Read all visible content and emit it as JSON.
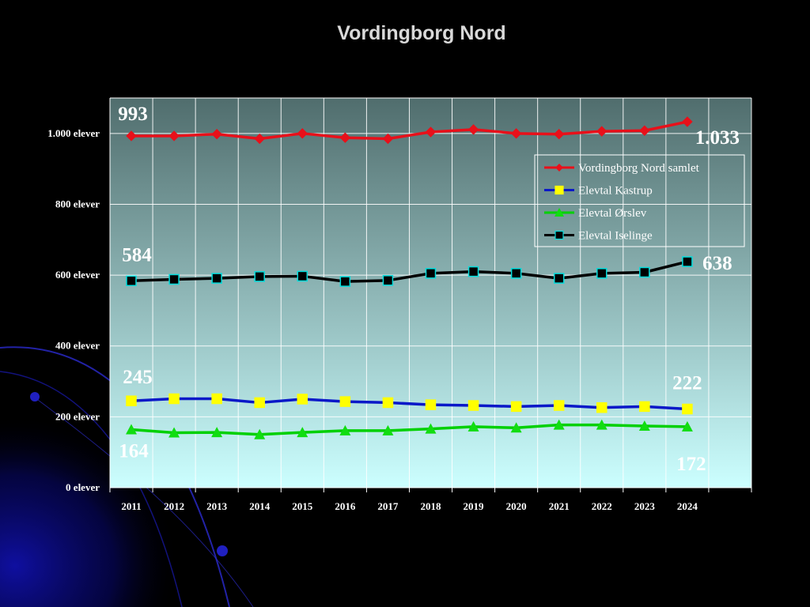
{
  "slide": {
    "title": "Vordingborg Nord"
  },
  "chart_data": {
    "type": "line",
    "title": "",
    "xlabel": "",
    "ylabel": "",
    "categories": [
      "2011",
      "2012",
      "2013",
      "2014",
      "2015",
      "2016",
      "2017",
      "2018",
      "2019",
      "2020",
      "2021",
      "2022",
      "2023",
      "2024"
    ],
    "ylim": [
      0,
      1100
    ],
    "yticks": [
      0,
      200,
      400,
      600,
      800,
      1000
    ],
    "ytick_labels": [
      "0 elever",
      "200 elever",
      "400 elever",
      "600 elever",
      "800 elever",
      "1.000 elever"
    ],
    "grid": true,
    "legend_position": "top-right",
    "series": [
      {
        "name": "Vordingborg Nord samlet",
        "color": "#e8101a",
        "marker": "diamond",
        "marker_color": "#e8101a",
        "values": [
          993,
          993,
          998,
          985,
          1000,
          988,
          985,
          1004,
          1011,
          1000,
          998,
          1006,
          1008,
          1033
        ]
      },
      {
        "name": "Elevtal Kastrup",
        "color": "#0a18c8",
        "marker": "square",
        "marker_color": "#ffff00",
        "values": [
          245,
          251,
          251,
          240,
          250,
          243,
          240,
          234,
          232,
          229,
          232,
          226,
          229,
          222
        ]
      },
      {
        "name": "Elevtal Ørslev",
        "color": "#00d000",
        "marker": "triangle",
        "marker_color": "#11dd11",
        "values": [
          164,
          155,
          156,
          150,
          156,
          161,
          161,
          166,
          172,
          169,
          177,
          177,
          174,
          172
        ]
      },
      {
        "name": "Elevtal Iselinge",
        "color": "#000000",
        "marker": "square",
        "marker_color": "#000000",
        "values": [
          584,
          588,
          591,
          596,
          597,
          582,
          585,
          605,
          610,
          605,
          591,
          605,
          608,
          638
        ]
      }
    ],
    "annotations": [
      {
        "series": 0,
        "index": 0,
        "text": "993",
        "color": "#ffffff"
      },
      {
        "series": 0,
        "index": 13,
        "text": "1.033",
        "color": "#ffffff"
      },
      {
        "series": 3,
        "index": 0,
        "text": "584",
        "color": "#ffffff"
      },
      {
        "series": 3,
        "index": 13,
        "text": "638",
        "color": "#ffffff"
      },
      {
        "series": 1,
        "index": 0,
        "text": "245",
        "color": "#ffffff"
      },
      {
        "series": 1,
        "index": 13,
        "text": "222",
        "color": "#ffffff"
      },
      {
        "series": 2,
        "index": 0,
        "text": "164",
        "color": "#ffffff"
      },
      {
        "series": 2,
        "index": 13,
        "text": "172",
        "color": "#ffffff"
      }
    ],
    "colors": {
      "plot_top": "#506d6d",
      "plot_bottom": "#ccffff",
      "grid": "#ffffff",
      "axis_text": "#ffffff"
    }
  }
}
